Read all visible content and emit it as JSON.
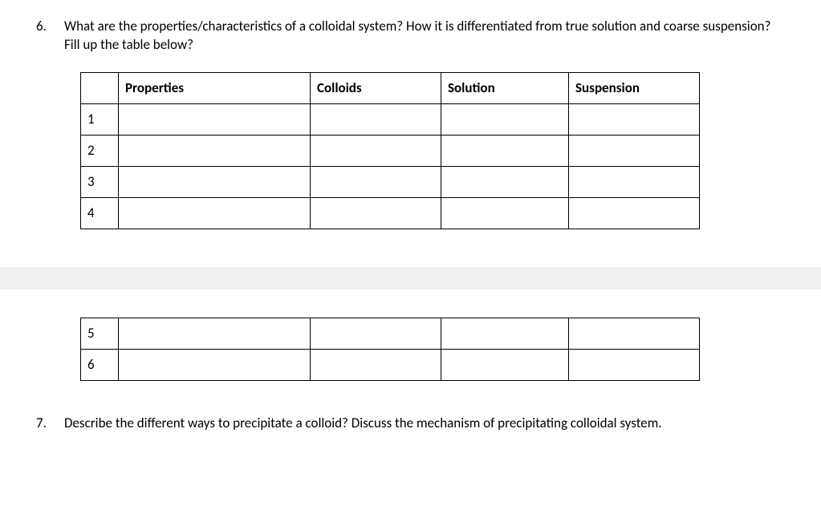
{
  "questions": {
    "q6": {
      "number": "6.",
      "text": "What are the properties/characteristics of a colloidal system? How it is differentiated from true solution and coarse suspension? Fill up the table below?"
    },
    "q7": {
      "number": "7.",
      "text": "Describe the different ways to precipitate a colloid? Discuss the mechanism of precipitating colloidal system."
    }
  },
  "table": {
    "headers": {
      "blank": "",
      "properties": "Properties",
      "colloids": "Colloids",
      "solution": "Solution",
      "suspension": "Suspension"
    },
    "rows_top": [
      "1",
      "2",
      "3",
      "4"
    ],
    "rows_bottom": [
      "5",
      "6"
    ]
  },
  "styling": {
    "font_family": "Calibri, Arial, sans-serif",
    "font_size_body": 17,
    "border_color": "#000000",
    "background_color": "#ffffff",
    "gap_band_color": "#f0f0f0",
    "col_widths": {
      "num": 30,
      "properties": 222,
      "colloids": 146,
      "solution": 142,
      "suspension": 146
    }
  }
}
